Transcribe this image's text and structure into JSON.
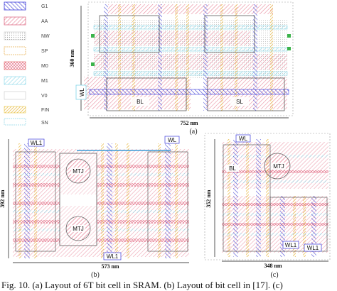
{
  "legend": [
    {
      "key": "g1",
      "label": "G1",
      "color": "#3a3adb"
    },
    {
      "key": "aa",
      "label": "AA",
      "color": "#e0708a"
    },
    {
      "key": "nw",
      "label": "NW",
      "color": "#9a9aa6"
    },
    {
      "key": "sp",
      "label": "SP",
      "color": "#e9b050"
    },
    {
      "key": "m0",
      "label": "M0",
      "color": "#e25a5a"
    },
    {
      "key": "m1",
      "label": "M1",
      "color": "#7fd6e8"
    },
    {
      "key": "v0",
      "label": "V0",
      "color": "#9a9aa6"
    },
    {
      "key": "fin",
      "label": "FIN",
      "color": "#e6c545"
    },
    {
      "key": "sn",
      "label": "SN",
      "color": "#8fd6e6"
    }
  ],
  "panel_a": {
    "label": "(a)",
    "width_dim": "752 nm",
    "height_dim": "360 nm",
    "wl": "WL",
    "bl": "BL",
    "sl": "SL"
  },
  "panel_b": {
    "label": "(b)",
    "width_dim": "573 nm",
    "height_dim": "392 nm",
    "wl": "WL",
    "wl_left": "WL1",
    "wl_bottom": "WL1",
    "mtj_top": "MTJ",
    "mtj_bottom": "MTJ"
  },
  "panel_c": {
    "label": "(c)",
    "width_dim": "348 nm",
    "height_dim": "352 nm",
    "wl_top": "WL",
    "bl": "BL",
    "mtj": "MTJ",
    "wl_bottom": "WL1",
    "wl_bottom2": "WL1"
  },
  "caption": "Fig. 10. (a) Layout of 6T bit cell in SRAM. (b) Layout of bit cell in [17]. (c)"
}
